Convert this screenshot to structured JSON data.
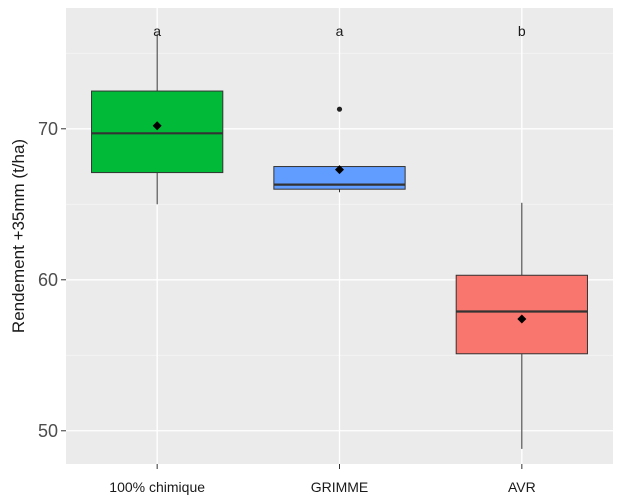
{
  "chart_data": {
    "type": "boxplot",
    "title": "",
    "xlabel": "",
    "ylabel": "Rendement +35mm (t/ha)",
    "ylim": [
      47.8,
      78
    ],
    "yticks": [
      50,
      60,
      70
    ],
    "grid": true,
    "legend": "none",
    "categories": [
      "100% chimique",
      "GRIMME",
      "AVR"
    ],
    "significance_letters": [
      "a",
      "a",
      "b"
    ],
    "boxes": [
      {
        "category": "100% chimique",
        "whisker_low": 65.0,
        "q1": 67.1,
        "median": 69.7,
        "q3": 72.5,
        "whisker_high": 76.3,
        "mean": 70.2,
        "outliers": [],
        "fill": "#00ba38"
      },
      {
        "category": "GRIMME",
        "whisker_low": 65.8,
        "q1": 66.0,
        "median": 66.3,
        "q3": 67.5,
        "whisker_high": 67.5,
        "mean": 67.3,
        "outliers": [
          71.3
        ],
        "fill": "#619cff"
      },
      {
        "category": "AVR",
        "whisker_low": 48.8,
        "q1": 55.1,
        "median": 57.9,
        "q3": 60.3,
        "whisker_high": 65.1,
        "mean": 57.4,
        "outliers": [],
        "fill": "#f8766d"
      }
    ]
  }
}
